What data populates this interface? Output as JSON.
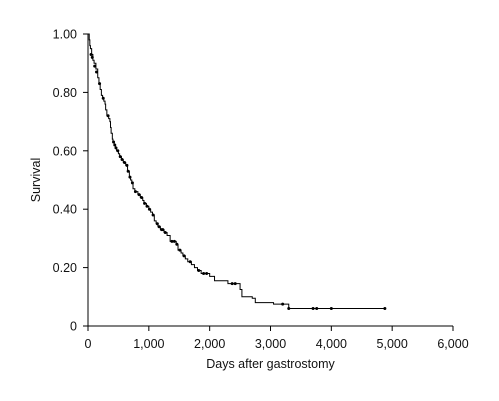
{
  "chart_data": {
    "type": "line",
    "subtype": "kaplan-meier step",
    "title": "",
    "xlabel": "Days after gastrostomy",
    "ylabel": "Survival",
    "xlim": [
      0,
      6000
    ],
    "ylim": [
      0,
      1
    ],
    "x_ticks": [
      0,
      1000,
      2000,
      3000,
      4000,
      5000,
      6000
    ],
    "x_tick_labels": [
      "0",
      "1,000",
      "2,000",
      "3,000",
      "4,000",
      "5,000",
      "6,000"
    ],
    "y_ticks": [
      0,
      0.2,
      0.4,
      0.6,
      0.8,
      1.0
    ],
    "y_tick_labels": [
      "0",
      "0.20",
      "0.40",
      "0.60",
      "0.80",
      "1.00"
    ],
    "grid": false,
    "legend": "none",
    "line_color": "#000000",
    "series": [
      {
        "points": [
          [
            0,
            1.0
          ],
          [
            20,
            0.98
          ],
          [
            30,
            0.96
          ],
          [
            40,
            0.95
          ],
          [
            60,
            0.93
          ],
          [
            80,
            0.91
          ],
          [
            100,
            0.9
          ],
          [
            130,
            0.88
          ],
          [
            160,
            0.85
          ],
          [
            180,
            0.83
          ],
          [
            200,
            0.81
          ],
          [
            220,
            0.79
          ],
          [
            240,
            0.78
          ],
          [
            260,
            0.77
          ],
          [
            280,
            0.76
          ],
          [
            290,
            0.74
          ],
          [
            310,
            0.72
          ],
          [
            340,
            0.71
          ],
          [
            360,
            0.7
          ],
          [
            370,
            0.68
          ],
          [
            380,
            0.66
          ],
          [
            400,
            0.64
          ],
          [
            410,
            0.63
          ],
          [
            430,
            0.62
          ],
          [
            450,
            0.61
          ],
          [
            470,
            0.6
          ],
          [
            500,
            0.59
          ],
          [
            520,
            0.58
          ],
          [
            550,
            0.57
          ],
          [
            580,
            0.56
          ],
          [
            620,
            0.55
          ],
          [
            650,
            0.53
          ],
          [
            680,
            0.51
          ],
          [
            700,
            0.5
          ],
          [
            720,
            0.49
          ],
          [
            740,
            0.47
          ],
          [
            770,
            0.46
          ],
          [
            820,
            0.45
          ],
          [
            860,
            0.44
          ],
          [
            900,
            0.43
          ],
          [
            920,
            0.42
          ],
          [
            960,
            0.41
          ],
          [
            1000,
            0.4
          ],
          [
            1030,
            0.39
          ],
          [
            1060,
            0.38
          ],
          [
            1090,
            0.36
          ],
          [
            1120,
            0.35
          ],
          [
            1150,
            0.34
          ],
          [
            1190,
            0.33
          ],
          [
            1250,
            0.32
          ],
          [
            1300,
            0.31
          ],
          [
            1350,
            0.29
          ],
          [
            1450,
            0.28
          ],
          [
            1480,
            0.26
          ],
          [
            1530,
            0.25
          ],
          [
            1560,
            0.24
          ],
          [
            1600,
            0.23
          ],
          [
            1640,
            0.22
          ],
          [
            1700,
            0.21
          ],
          [
            1750,
            0.2
          ],
          [
            1800,
            0.19
          ],
          [
            1860,
            0.18
          ],
          [
            2000,
            0.17
          ],
          [
            2080,
            0.155
          ],
          [
            2300,
            0.145
          ],
          [
            2500,
            0.125
          ],
          [
            2530,
            0.1
          ],
          [
            2700,
            0.095
          ],
          [
            2750,
            0.08
          ],
          [
            3050,
            0.075
          ],
          [
            3300,
            0.06
          ],
          [
            4880,
            0.06
          ]
        ],
        "censored": [
          [
            50,
            0.93
          ],
          [
            70,
            0.92
          ],
          [
            110,
            0.89
          ],
          [
            140,
            0.87
          ],
          [
            190,
            0.83
          ],
          [
            250,
            0.78
          ],
          [
            330,
            0.72
          ],
          [
            420,
            0.63
          ],
          [
            440,
            0.62
          ],
          [
            460,
            0.61
          ],
          [
            490,
            0.6
          ],
          [
            530,
            0.58
          ],
          [
            560,
            0.57
          ],
          [
            600,
            0.56
          ],
          [
            640,
            0.55
          ],
          [
            660,
            0.53
          ],
          [
            690,
            0.51
          ],
          [
            730,
            0.49
          ],
          [
            780,
            0.46
          ],
          [
            840,
            0.45
          ],
          [
            880,
            0.44
          ],
          [
            930,
            0.42
          ],
          [
            970,
            0.41
          ],
          [
            1010,
            0.4
          ],
          [
            1070,
            0.38
          ],
          [
            1140,
            0.35
          ],
          [
            1170,
            0.34
          ],
          [
            1210,
            0.33
          ],
          [
            1230,
            0.33
          ],
          [
            1270,
            0.32
          ],
          [
            1380,
            0.29
          ],
          [
            1420,
            0.29
          ],
          [
            1460,
            0.28
          ],
          [
            1510,
            0.26
          ],
          [
            1580,
            0.24
          ],
          [
            1680,
            0.22
          ],
          [
            1820,
            0.19
          ],
          [
            1900,
            0.18
          ],
          [
            1950,
            0.18
          ],
          [
            2370,
            0.145
          ],
          [
            2420,
            0.145
          ],
          [
            3200,
            0.075
          ],
          [
            3300,
            0.06
          ],
          [
            3700,
            0.06
          ],
          [
            3760,
            0.06
          ],
          [
            4000,
            0.06
          ],
          [
            4880,
            0.06
          ]
        ]
      }
    ]
  }
}
